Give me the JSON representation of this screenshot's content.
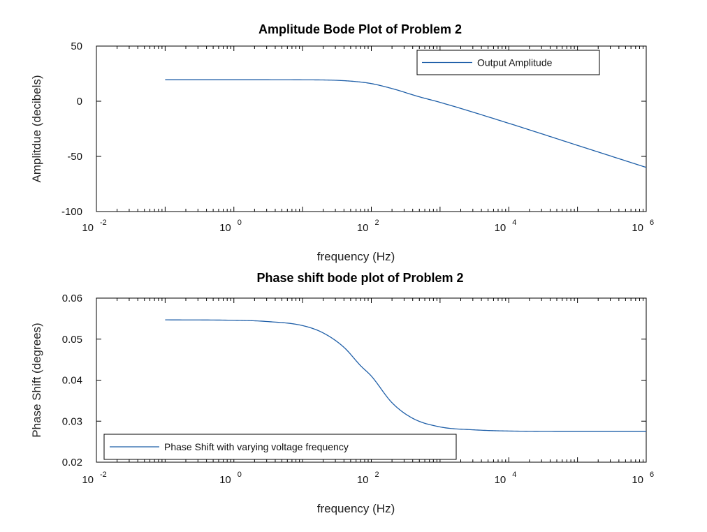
{
  "colors": {
    "line": "#1f5fa8",
    "axes": "#000000",
    "background": "#ffffff"
  },
  "chart_data": [
    {
      "type": "line",
      "title": "Amplitude Bode Plot of Problem 2",
      "xlabel": "frequency (Hz)",
      "ylabel": "Amplitdue (decibels)",
      "xscale": "log",
      "xlim": [
        0.01,
        1000000
      ],
      "ylim": [
        -100,
        50
      ],
      "xticks": [
        {
          "base": "10",
          "exp": "-2"
        },
        {
          "base": "10",
          "exp": "0"
        },
        {
          "base": "10",
          "exp": "2"
        },
        {
          "base": "10",
          "exp": "4"
        },
        {
          "base": "10",
          "exp": "6"
        }
      ],
      "yticks": [
        "50",
        "0",
        "-50",
        "-100"
      ],
      "legend": {
        "position": "top-right",
        "entries": [
          "Output Amplitude"
        ]
      },
      "grid": false,
      "series": [
        {
          "name": "Output Amplitude",
          "x": [
            0.1,
            1,
            10,
            30,
            60,
            100,
            200,
            500,
            1000,
            10000,
            100000,
            1000000
          ],
          "y": [
            19.5,
            19.5,
            19.4,
            19.0,
            17.8,
            16.0,
            11.5,
            4.0,
            -1.0,
            -20.0,
            -40.0,
            -60.0
          ]
        }
      ]
    },
    {
      "type": "line",
      "title": "Phase shift bode plot of Problem 2",
      "xlabel": "frequency (Hz)",
      "ylabel": "Phase Shift (degrees)",
      "xscale": "log",
      "xlim": [
        0.01,
        1000000
      ],
      "ylim": [
        0.02,
        0.06
      ],
      "xticks": [
        {
          "base": "10",
          "exp": "-2"
        },
        {
          "base": "10",
          "exp": "0"
        },
        {
          "base": "10",
          "exp": "2"
        },
        {
          "base": "10",
          "exp": "4"
        },
        {
          "base": "10",
          "exp": "6"
        }
      ],
      "yticks": [
        "0.06",
        "0.05",
        "0.04",
        "0.03",
        "0.02"
      ],
      "legend": {
        "position": "bottom-left",
        "entries": [
          "Phase Shift with varying voltage frequency"
        ]
      },
      "grid": false,
      "series": [
        {
          "name": "Phase Shift with varying voltage frequency",
          "x": [
            0.1,
            1,
            3,
            10,
            20,
            40,
            70,
            100,
            200,
            400,
            1000,
            3000,
            10000,
            100000,
            1000000
          ],
          "y": [
            0.0547,
            0.0546,
            0.0543,
            0.0533,
            0.0515,
            0.048,
            0.0435,
            0.041,
            0.0345,
            0.0307,
            0.0286,
            0.0279,
            0.0276,
            0.0275,
            0.0275
          ]
        }
      ]
    }
  ]
}
